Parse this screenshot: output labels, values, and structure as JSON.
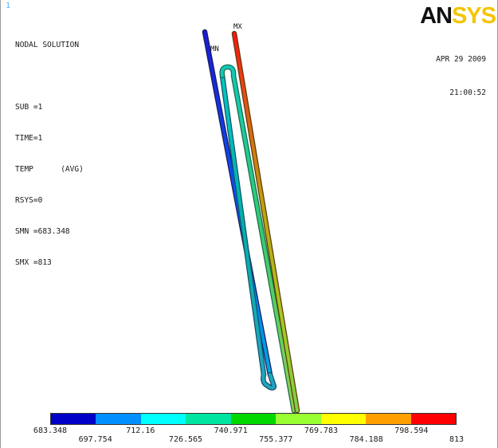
{
  "window_number": "1",
  "solution": {
    "title": "NODAL SOLUTION",
    "sub": "SUB =1",
    "time": "TIME=1",
    "temp": "TEMP      (AVG)",
    "rsys": "RSYS=0",
    "smn": "SMN =683.348",
    "smx": "SMX =813"
  },
  "brand": {
    "part1": "AN",
    "part2": "SYS"
  },
  "date": "APR 29 2009",
  "time_of_day": "21:00:52",
  "markers": {
    "min": "MN",
    "max": "MX"
  },
  "legend": {
    "colors": [
      "#0000c8",
      "#0090ff",
      "#00ffff",
      "#00e5a0",
      "#00d800",
      "#99ff33",
      "#ffff00",
      "#ffa000",
      "#ff0000"
    ],
    "values": [
      "683.348",
      "697.754",
      "712.16",
      "726.565",
      "740.971",
      "755.377",
      "769.783",
      "784.188",
      "798.594",
      "813"
    ]
  }
}
